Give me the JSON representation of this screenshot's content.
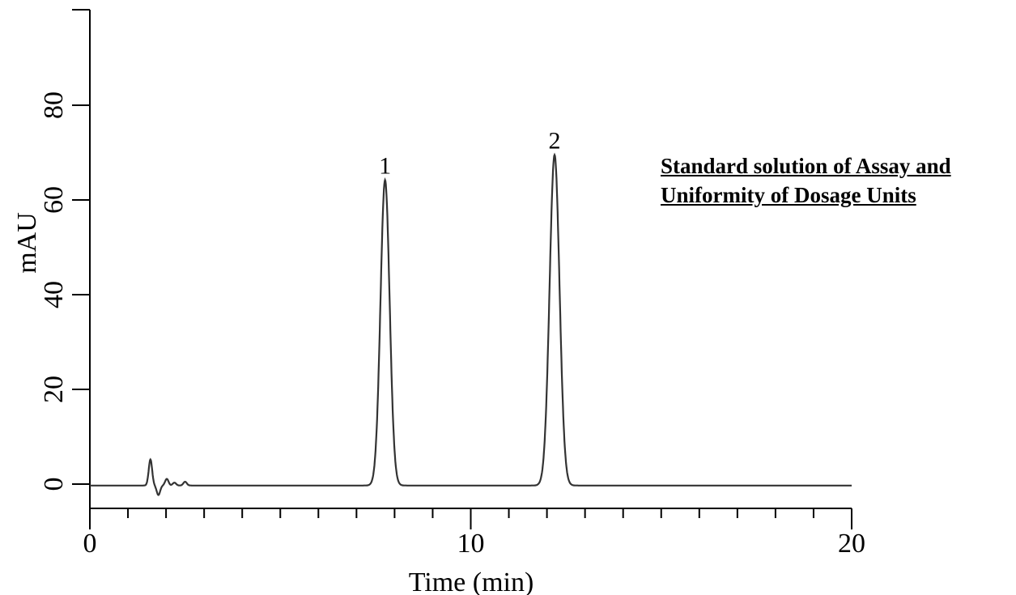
{
  "chart_data": {
    "type": "line",
    "title": "",
    "xlabel": "Time (min)",
    "ylabel": "mAU",
    "xlim": [
      0,
      20
    ],
    "ylim": [
      -5,
      100
    ],
    "x_ticks": [
      0,
      10,
      20
    ],
    "y_ticks": [
      0,
      20,
      40,
      60,
      80
    ],
    "x_minor_step": 1,
    "grid": false,
    "line_color": "#333333",
    "baseline": -0.3,
    "peaks": [
      {
        "label": "1",
        "rt": 7.75,
        "height": 64.5
      },
      {
        "label": "2",
        "rt": 12.2,
        "height": 69.8
      }
    ],
    "solvent_front": [
      {
        "rt": 1.59,
        "height": 5.5
      },
      {
        "rt": 1.8,
        "height": -2.0
      },
      {
        "rt": 2.02,
        "height": 1.4
      },
      {
        "rt": 2.22,
        "height": 0.6
      },
      {
        "rt": 2.5,
        "height": 0.8
      }
    ],
    "annotation": [
      "Standard solution of Assay and",
      "Uniformity of Dosage Units"
    ]
  }
}
